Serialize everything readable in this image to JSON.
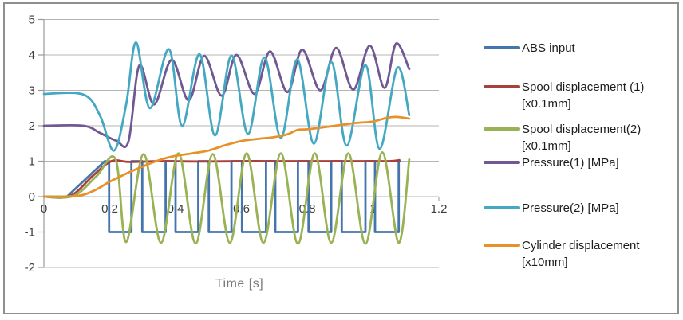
{
  "chart_data": {
    "type": "line",
    "title": "",
    "xlabel": "Time [s]",
    "ylabel": "",
    "xlim": [
      0,
      1.2
    ],
    "ylim": [
      -2,
      5
    ],
    "grid": "horizontal",
    "legend_position": "right",
    "x_ticks": {
      "values": [
        0,
        0.2,
        0.4,
        0.6,
        0.8,
        1,
        1.2
      ],
      "labels": [
        "0",
        "0.2",
        "0.4",
        "0.6",
        "0.8",
        "1",
        "1.2"
      ]
    },
    "y_ticks": {
      "values": [
        5,
        4,
        3,
        2,
        1,
        0,
        -1,
        -2
      ],
      "labels": [
        "5",
        "4",
        "3",
        "2",
        "1",
        "0",
        "-1",
        "-2"
      ]
    },
    "axis_colors": {
      "grid": "#b5b5b5",
      "axis": "#9a9a9a",
      "tick_text": "#3d3d3d"
    },
    "series": [
      {
        "name": "ABS input",
        "slug": "abs-input",
        "color": "#4575AD",
        "legend_lines": [
          "ABS input"
        ],
        "interpolation": "linear",
        "points": [
          [
            0,
            0
          ],
          [
            0.07,
            0
          ],
          [
            0.185,
            1
          ],
          [
            0.198,
            1
          ],
          [
            0.198,
            -1
          ],
          [
            0.266,
            -1
          ],
          [
            0.266,
            1
          ],
          [
            0.299,
            1
          ],
          [
            0.299,
            -1
          ],
          [
            0.37,
            -1
          ],
          [
            0.37,
            1
          ],
          [
            0.4,
            1
          ],
          [
            0.4,
            -1
          ],
          [
            0.469,
            -1
          ],
          [
            0.469,
            1
          ],
          [
            0.501,
            1
          ],
          [
            0.501,
            -1
          ],
          [
            0.57,
            -1
          ],
          [
            0.57,
            1
          ],
          [
            0.602,
            1
          ],
          [
            0.602,
            -1
          ],
          [
            0.675,
            -1
          ],
          [
            0.675,
            1
          ],
          [
            0.703,
            1
          ],
          [
            0.703,
            -1
          ],
          [
            0.772,
            -1
          ],
          [
            0.772,
            1
          ],
          [
            0.804,
            1
          ],
          [
            0.804,
            -1
          ],
          [
            0.873,
            -1
          ],
          [
            0.873,
            1
          ],
          [
            0.905,
            1
          ],
          [
            0.905,
            -1
          ],
          [
            0.977,
            -1
          ],
          [
            0.977,
            1
          ],
          [
            1.006,
            1
          ],
          [
            1.006,
            -1
          ],
          [
            1.078,
            -1
          ],
          [
            1.078,
            1
          ],
          [
            1.082,
            1
          ]
        ]
      },
      {
        "name": "Spool displacement (1) [x0.1mm]",
        "slug": "spool-displacement-1",
        "color": "#A8403C",
        "legend_lines": [
          "Spool displacement (1)",
          "[x0.1mm]"
        ],
        "interpolation": "smooth",
        "points": [
          [
            0,
            0
          ],
          [
            0.08,
            0.02
          ],
          [
            0.15,
            0.6
          ],
          [
            0.205,
            1.0
          ],
          [
            0.26,
            0.98
          ],
          [
            0.36,
            1.0
          ],
          [
            0.48,
            0.99
          ],
          [
            0.6,
            1.0
          ],
          [
            0.72,
            1.0
          ],
          [
            0.84,
            1.0
          ],
          [
            0.96,
            1.0
          ],
          [
            1.05,
            1.0
          ],
          [
            1.08,
            1.03
          ]
        ]
      },
      {
        "name": "Spool displacement(2) [x0.1mm]",
        "slug": "spool-displacement-2",
        "color": "#98B254",
        "legend_lines": [
          "Spool displacement(2)",
          "[x0.1mm]"
        ],
        "interpolation": "smooth",
        "points": [
          [
            0,
            0
          ],
          [
            0.09,
            0.02
          ],
          [
            0.16,
            0.58
          ],
          [
            0.218,
            1.05
          ],
          [
            0.25,
            -1.28
          ],
          [
            0.303,
            1.2
          ],
          [
            0.356,
            -1.3
          ],
          [
            0.409,
            1.22
          ],
          [
            0.461,
            -1.32
          ],
          [
            0.513,
            1.2
          ],
          [
            0.565,
            -1.3
          ],
          [
            0.616,
            1.22
          ],
          [
            0.667,
            -1.3
          ],
          [
            0.72,
            1.22
          ],
          [
            0.772,
            -1.33
          ],
          [
            0.823,
            1.22
          ],
          [
            0.873,
            -1.3
          ],
          [
            0.925,
            1.22
          ],
          [
            0.977,
            -1.33
          ],
          [
            1.028,
            1.25
          ],
          [
            1.078,
            -1.3
          ],
          [
            1.11,
            1.05
          ]
        ]
      },
      {
        "name": "Pressure(1) [MPa]",
        "slug": "pressure-1",
        "color": "#6F5894",
        "legend_lines": [
          "Pressure(1) [MPa]"
        ],
        "interpolation": "smooth",
        "points": [
          [
            0,
            2.0
          ],
          [
            0.12,
            2.0
          ],
          [
            0.17,
            1.8
          ],
          [
            0.22,
            1.58
          ],
          [
            0.257,
            1.56
          ],
          [
            0.29,
            3.7
          ],
          [
            0.335,
            2.6
          ],
          [
            0.388,
            3.86
          ],
          [
            0.44,
            2.72
          ],
          [
            0.487,
            3.97
          ],
          [
            0.54,
            2.85
          ],
          [
            0.585,
            4.0
          ],
          [
            0.64,
            2.9
          ],
          [
            0.687,
            4.1
          ],
          [
            0.74,
            2.95
          ],
          [
            0.785,
            4.15
          ],
          [
            0.84,
            3.0
          ],
          [
            0.888,
            4.2
          ],
          [
            0.94,
            3.02
          ],
          [
            0.99,
            4.26
          ],
          [
            1.035,
            3.07
          ],
          [
            1.07,
            4.32
          ],
          [
            1.11,
            3.6
          ]
        ]
      },
      {
        "name": "Pressure(2) [MPa]",
        "slug": "pressure-2",
        "color": "#44A8C2",
        "legend_lines": [
          "Pressure(2) [MPa]"
        ],
        "interpolation": "smooth",
        "points": [
          [
            0,
            2.9
          ],
          [
            0.12,
            2.88
          ],
          [
            0.17,
            2.3
          ],
          [
            0.213,
            1.3
          ],
          [
            0.25,
            2.6
          ],
          [
            0.28,
            4.35
          ],
          [
            0.322,
            2.5
          ],
          [
            0.38,
            4.16
          ],
          [
            0.42,
            2.0
          ],
          [
            0.473,
            4.02
          ],
          [
            0.52,
            1.73
          ],
          [
            0.57,
            3.98
          ],
          [
            0.62,
            1.77
          ],
          [
            0.67,
            3.93
          ],
          [
            0.72,
            1.66
          ],
          [
            0.77,
            3.87
          ],
          [
            0.82,
            1.5
          ],
          [
            0.873,
            3.8
          ],
          [
            0.92,
            1.44
          ],
          [
            0.977,
            3.71
          ],
          [
            1.02,
            1.35
          ],
          [
            1.074,
            3.64
          ],
          [
            1.11,
            2.3
          ]
        ]
      },
      {
        "name": "Cylinder displacement [x10mm]",
        "slug": "cylinder-displacement",
        "color": "#E8912B",
        "legend_lines": [
          "Cylinder displacement",
          "[x10mm]"
        ],
        "interpolation": "smooth",
        "points": [
          [
            0,
            0
          ],
          [
            0.1,
            0.02
          ],
          [
            0.15,
            0.16
          ],
          [
            0.2,
            0.42
          ],
          [
            0.25,
            0.65
          ],
          [
            0.3,
            0.85
          ],
          [
            0.35,
            1.03
          ],
          [
            0.4,
            1.15
          ],
          [
            0.45,
            1.22
          ],
          [
            0.5,
            1.3
          ],
          [
            0.55,
            1.45
          ],
          [
            0.6,
            1.57
          ],
          [
            0.65,
            1.63
          ],
          [
            0.7,
            1.68
          ],
          [
            0.74,
            1.76
          ],
          [
            0.77,
            1.88
          ],
          [
            0.8,
            1.9
          ],
          [
            0.85,
            1.96
          ],
          [
            0.9,
            2.02
          ],
          [
            0.95,
            2.08
          ],
          [
            1.0,
            2.12
          ],
          [
            1.04,
            2.22
          ],
          [
            1.07,
            2.25
          ],
          [
            1.11,
            2.2
          ]
        ]
      }
    ]
  },
  "frame": {
    "border_color": "#8f8f8f",
    "background": "#ffffff"
  }
}
